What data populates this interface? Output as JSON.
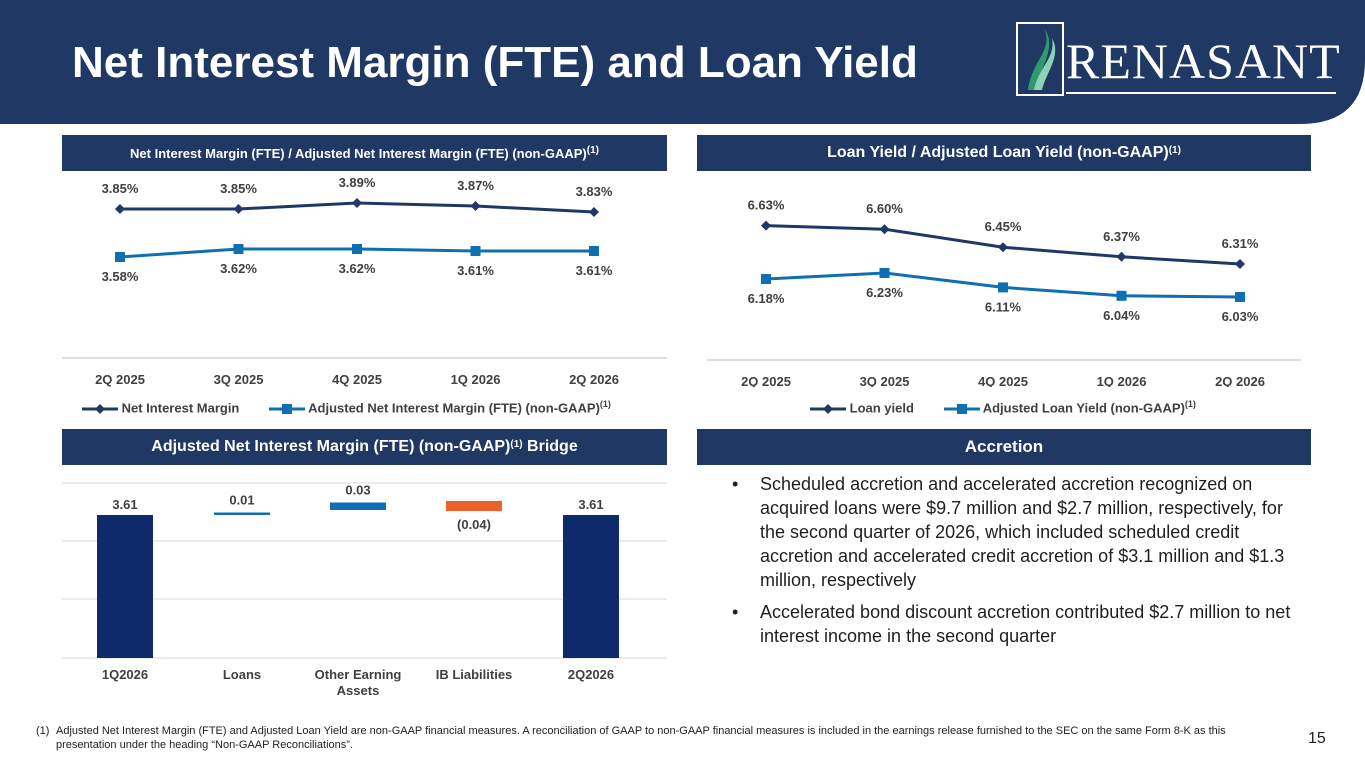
{
  "title": "Net Interest Margin (FTE) and Loan Yield",
  "logo": {
    "text": "RENASANT",
    "icon": "renasant-leaf-logo-icon"
  },
  "colors": {
    "navy": "#1f3864",
    "dark_navy_series": "#1f3864",
    "blue_series": "#0f6fb1",
    "bar_navy": "#0e2a6b",
    "orange": "#e8622a"
  },
  "panels": {
    "nim_header": "Net Interest Margin (FTE) / Adjusted Net Interest Margin (FTE) (non-GAAP)",
    "nim_header_sup": "(1)",
    "loan_header": "Loan Yield / Adjusted Loan Yield (non-GAAP)",
    "loan_header_sup": "(1)",
    "bridge_header": "Adjusted Net Interest Margin (FTE) (non-GAAP)",
    "bridge_header_sup": "(1)",
    "bridge_header_suffix": " Bridge",
    "accretion_header": "Accretion"
  },
  "chart_data": [
    {
      "type": "line",
      "categories": [
        "2Q 2025",
        "3Q 2025",
        "4Q 2025",
        "1Q 2026",
        "2Q 2026"
      ],
      "series": [
        {
          "name": "Net Interest Margin",
          "values": [
            3.85,
            3.85,
            3.89,
            3.87,
            3.83
          ],
          "labels": [
            "3.85%",
            "3.85%",
            "3.89%",
            "3.87%",
            "3.83%"
          ],
          "marker": "diamond",
          "color": "#1f3864"
        },
        {
          "name": "Adjusted Net Interest Margin (FTE) (non-GAAP)",
          "name_sup": "(1)",
          "values": [
            3.58,
            3.62,
            3.62,
            3.61,
            3.61
          ],
          "labels": [
            "3.58%",
            "3.62%",
            "3.62%",
            "3.61%",
            "3.61%"
          ],
          "marker": "square",
          "color": "#0f6fb1"
        }
      ],
      "legend_position": "bottom"
    },
    {
      "type": "line",
      "categories": [
        "2Q 2025",
        "3Q 2025",
        "4Q 2025",
        "1Q 2026",
        "2Q 2026"
      ],
      "series": [
        {
          "name": "Loan yield",
          "values": [
            6.63,
            6.6,
            6.45,
            6.37,
            6.31
          ],
          "labels": [
            "6.63%",
            "6.60%",
            "6.45%",
            "6.37%",
            "6.31%"
          ],
          "marker": "diamond",
          "color": "#1f3864"
        },
        {
          "name": "Adjusted Loan Yield (non-GAAP)",
          "name_sup": "(1)",
          "values": [
            6.18,
            6.23,
            6.11,
            6.04,
            6.03
          ],
          "labels": [
            "6.18%",
            "6.23%",
            "6.11%",
            "6.04%",
            "6.03%"
          ],
          "marker": "square",
          "color": "#0f6fb1"
        }
      ],
      "legend_position": "bottom"
    },
    {
      "type": "bar",
      "subtype": "waterfall",
      "categories": [
        "1Q2026",
        "Loans",
        "Other Earning Assets",
        "IB Liabilities",
        "2Q2026"
      ],
      "category_lines": [
        [
          "1Q2026"
        ],
        [
          "Loans"
        ],
        [
          "Other Earning",
          "Assets"
        ],
        [
          "IB Liabilities"
        ],
        [
          "2Q2026"
        ]
      ],
      "values": [
        3.61,
        0.01,
        0.03,
        -0.04,
        3.61
      ],
      "labels": [
        "3.61",
        "0.01",
        "0.03",
        "(0.04)",
        "3.61"
      ],
      "kinds": [
        "total",
        "delta",
        "delta",
        "delta",
        "total"
      ],
      "colors": [
        "#0e2a6b",
        "#0f6fb1",
        "#0f6fb1",
        "#e8622a",
        "#0e2a6b"
      ],
      "grid": true
    }
  ],
  "accretion": {
    "bullets": [
      "Scheduled accretion and accelerated accretion recognized on acquired loans were $9.7 million and $2.7 million, respectively, for the second quarter of 2026, which included scheduled credit accretion and accelerated credit accretion of $3.1 million and $1.3 million, respectively",
      "Accelerated bond discount accretion contributed $2.7 million to net interest income in the second quarter"
    ],
    "bullet_char": "•"
  },
  "footnote": {
    "number": "(1)",
    "text": "Adjusted Net Interest Margin (FTE) and Adjusted Loan Yield are non-GAAP financial measures. A reconciliation of GAAP to non-GAAP financial measures is included in the earnings release furnished to the SEC on the same Form 8-K as this presentation under the heading “Non-GAAP Reconciliations”."
  },
  "page_number": "15"
}
